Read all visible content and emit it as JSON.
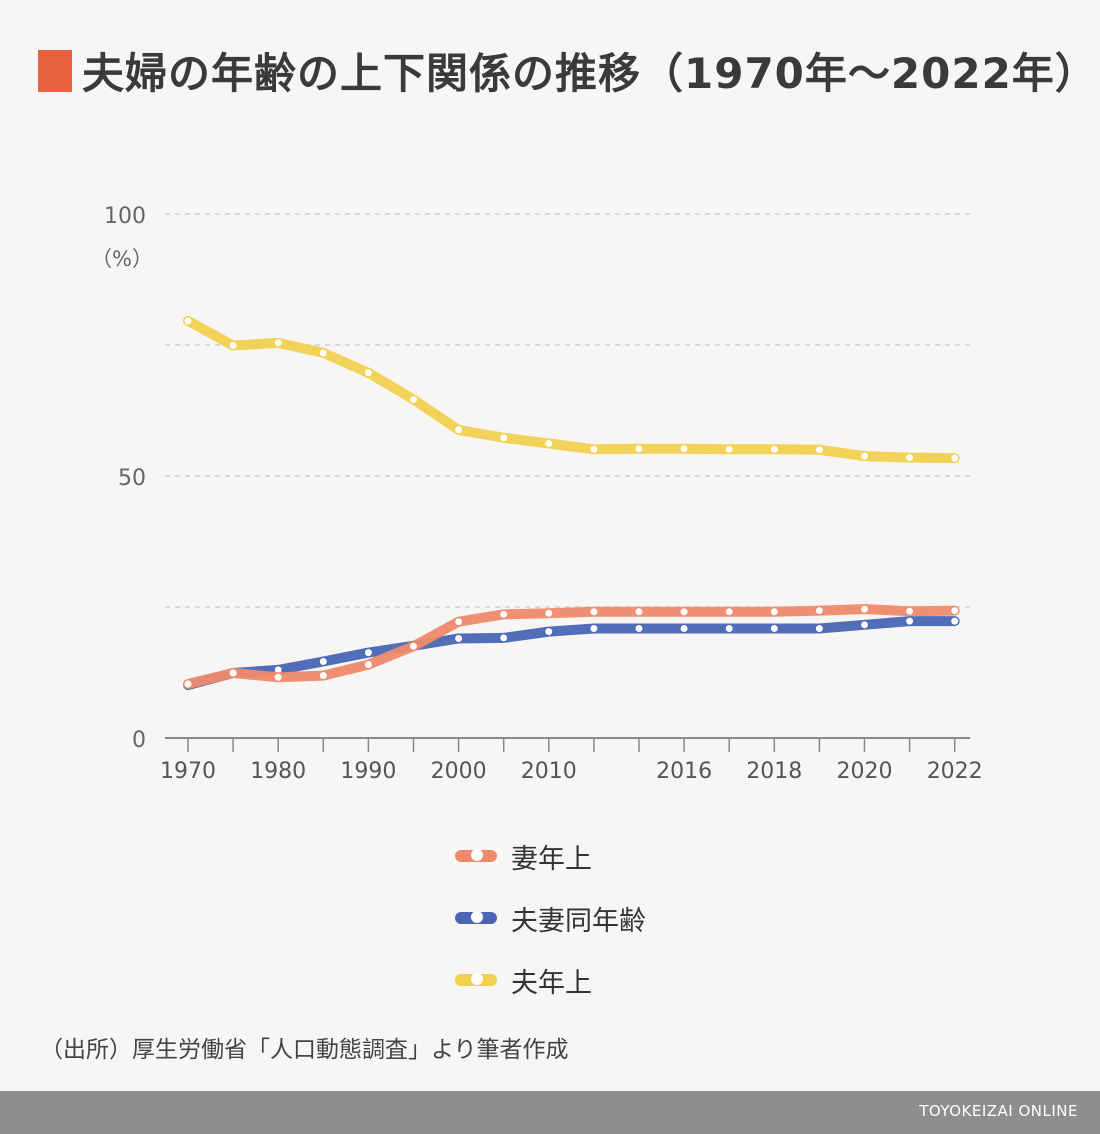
{
  "title": "夫婦の年齢の上下関係の推移（1970年～2022年）",
  "ylabel": "（%）",
  "source": "（出所）厚生労働省「人口動態調査」より筆者作成",
  "brand": "TOYOKEIZAI ONLINE",
  "colors": {
    "title_mark": "#e8603c",
    "wife_older": "#ef8a6c",
    "same_age": "#4a66b5",
    "husband_older": "#f1d04f"
  },
  "legend": [
    {
      "label": "妻年上",
      "color": "#ef8a6c"
    },
    {
      "label": "夫妻同年齢",
      "color": "#4a66b5"
    },
    {
      "label": "夫年上",
      "color": "#f1d04f"
    }
  ],
  "chart_data": {
    "type": "line",
    "ylim": [
      0,
      100
    ],
    "yticks": [
      0,
      50,
      100
    ],
    "grid": true,
    "x": [
      1970,
      1975,
      1980,
      1985,
      1990,
      1995,
      2000,
      2005,
      2010,
      2013,
      2015,
      2016,
      2017,
      2018,
      2019,
      2020,
      2021,
      2022
    ],
    "xtick_labels": [
      "1970",
      "1980",
      "1990",
      "2000",
      "2010",
      "2016",
      "2018",
      "2020",
      "2022"
    ],
    "series": [
      {
        "name": "妻年上",
        "color": "#ef8a6c",
        "values": [
          10.3,
          12.4,
          11.6,
          11.9,
          14.0,
          17.5,
          22.2,
          23.6,
          23.8,
          24.1,
          24.1,
          24.1,
          24.1,
          24.1,
          24.3,
          24.6,
          24.2,
          24.3
        ]
      },
      {
        "name": "夫妻同年齢",
        "color": "#4a66b5",
        "values": [
          10.1,
          12.4,
          13.0,
          14.6,
          16.3,
          17.6,
          19.0,
          19.1,
          20.3,
          20.9,
          20.9,
          20.9,
          20.9,
          20.9,
          20.9,
          21.6,
          22.3,
          22.3
        ]
      },
      {
        "name": "夫年上",
        "color": "#f1d04f",
        "values": [
          79.6,
          74.9,
          75.4,
          73.5,
          69.7,
          64.6,
          58.8,
          57.3,
          56.2,
          55.1,
          55.2,
          55.2,
          55.1,
          55.1,
          55.0,
          53.8,
          53.5,
          53.4
        ]
      }
    ]
  }
}
